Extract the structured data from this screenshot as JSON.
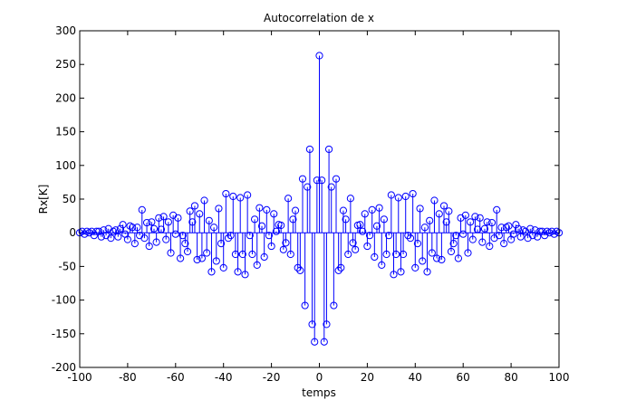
{
  "chart_data": {
    "type": "stem",
    "title": "Autocorrelation de x",
    "xlabel": "temps",
    "ylabel": "Rx[K]",
    "xlim": [
      -100,
      100
    ],
    "ylim": [
      -200,
      300
    ],
    "xticks": [
      -100,
      -80,
      -60,
      -40,
      -20,
      0,
      20,
      40,
      60,
      80,
      100
    ],
    "yticks": [
      -200,
      -150,
      -100,
      -50,
      0,
      50,
      100,
      150,
      200,
      250,
      300
    ],
    "grid": false,
    "series_color": "#0000ff",
    "marker": "circle",
    "x_step": 1,
    "x_start": 0,
    "values_k0_to_100": [
      263,
      78,
      -162,
      -136,
      124,
      68,
      -108,
      80,
      -56,
      -52,
      33,
      20,
      -32,
      51,
      -15,
      -25,
      11,
      12,
      2,
      28,
      -20,
      -4,
      34,
      -36,
      10,
      37,
      -48,
      20,
      -32,
      -4,
      56,
      -62,
      -32,
      52,
      -58,
      -32,
      54,
      -4,
      -8,
      58,
      -52,
      -16,
      36,
      -42,
      8,
      -58,
      18,
      -30,
      48,
      -38,
      28,
      -40,
      40,
      16,
      32,
      -28,
      -16,
      -4,
      -38,
      22,
      -2,
      26,
      -30,
      16,
      -10,
      24,
      5,
      22,
      -14,
      6,
      16,
      -20,
      15,
      -8,
      34,
      -4,
      8,
      -16,
      8,
      10,
      -10,
      -2,
      12,
      6,
      -6,
      4,
      2,
      -8,
      6,
      -4,
      4,
      -6,
      2,
      2,
      -4,
      2,
      0,
      2,
      -2,
      2,
      0
    ]
  }
}
